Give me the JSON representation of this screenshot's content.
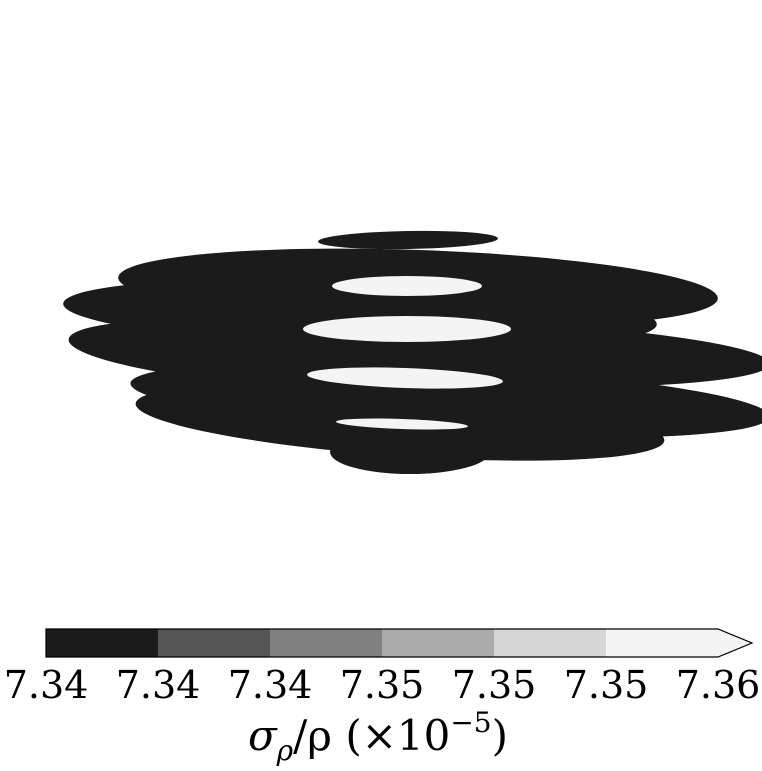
{
  "chart_data": {
    "type": "heatmap",
    "title": "",
    "xlabel": "",
    "ylabel": "",
    "colorbar": {
      "label": "σρ/ρ (×10⁻⁵)",
      "label_parts": {
        "sym": "σ",
        "sub": "ρ",
        "rest": "/ρ (×10",
        "exp": "−5",
        "close": ")"
      },
      "tick_labels": [
        "7.34",
        "7.34",
        "7.34",
        "7.35",
        "7.35",
        "7.35",
        "7.36"
      ],
      "levels": 6,
      "extend": "max",
      "colors": [
        "#1b1b1b",
        "#555555",
        "#808080",
        "#ababab",
        "#d6d6d6",
        "#f4f4f4"
      ]
    },
    "field_colors": {
      "low": "#1b1b1b",
      "high": "#f4f4f4"
    }
  }
}
